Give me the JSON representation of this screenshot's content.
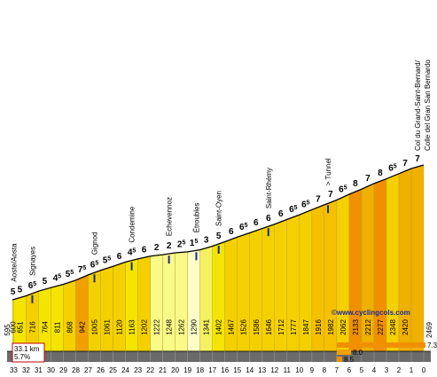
{
  "chart_data": {
    "type": "area",
    "title": "",
    "xlabel": "",
    "ylabel": "",
    "km_labels": [
      33,
      32,
      31,
      30,
      29,
      28,
      27,
      26,
      25,
      24,
      23,
      22,
      21,
      20,
      19,
      18,
      17,
      16,
      15,
      14,
      13,
      12,
      11,
      10,
      9,
      8,
      7,
      6,
      5,
      4,
      3,
      2,
      1,
      0
    ],
    "altitudes": [
      595,
      600,
      651,
      716,
      764,
      811,
      868,
      942,
      1005,
      1061,
      1120,
      1163,
      1202,
      1222,
      1248,
      1262,
      1290,
      1341,
      1402,
      1467,
      1526,
      1586,
      1646,
      1712,
      1777,
      1847,
      1916,
      1982,
      2062,
      2133,
      2212,
      2277,
      2348,
      2420,
      2469
    ],
    "gradients": [
      "5",
      "5",
      "6.5",
      "5",
      "4.5",
      "5.5",
      "7.5",
      "6.5",
      "5.5",
      "6",
      "4.5",
      "6",
      "2",
      "2",
      "2.5",
      "1.5",
      "3",
      "5",
      "6",
      "6.5",
      "6",
      "6",
      "6",
      "6.5",
      "6.5",
      "7",
      "7",
      "6.5",
      "8",
      "7",
      "8",
      "6.5",
      "7",
      "7",
      "5"
    ],
    "colors": [
      "#f5e400",
      "#f5e400",
      "#f5d000",
      "#f5e400",
      "#f5e400",
      "#f5d000",
      "#f0a000",
      "#f5d000",
      "#f5d000",
      "#f5d000",
      "#f5e400",
      "#f5d000",
      "#fafa88",
      "#fafa88",
      "#fafa88",
      "#fdfdc8",
      "#f5f060",
      "#f5e400",
      "#f5d000",
      "#f5d000",
      "#f5d000",
      "#f5d000",
      "#f5d000",
      "#f5d000",
      "#f5d000",
      "#f5c000",
      "#f5c000",
      "#f5d000",
      "#f09000",
      "#f0b000",
      "#f09000",
      "#f5d000",
      "#f0b000",
      "#f0b000",
      "#f5e400"
    ],
    "places": [
      {
        "name": "Aoste/Aosta",
        "km": 33
      },
      {
        "name": "Signayes",
        "km": 31.5
      },
      {
        "name": "Gignod",
        "km": 26.5
      },
      {
        "name": "Condemine",
        "km": 23.5
      },
      {
        "name": "Echevennoz",
        "km": 20.5
      },
      {
        "name": "Étroubles",
        "km": 18.3
      },
      {
        "name": "Saint-Oyen",
        "km": 16.5
      },
      {
        "name": "Saint-Rhémy",
        "km": 12.5
      },
      {
        "name": "> Tunnel",
        "km": 7.7
      },
      {
        "name": "Col du Grand-Saint-Bernard/",
        "km": 0.4
      },
      {
        "name": "Colle del Gran San Bernardo",
        "km": 0.0
      }
    ],
    "summary": {
      "distance": "33.1 km",
      "avg_gradient": "5.7%"
    },
    "max_bars": [
      "7.3",
      "8.0",
      "8.5"
    ],
    "credit": "©www.cyclingcols.com"
  }
}
